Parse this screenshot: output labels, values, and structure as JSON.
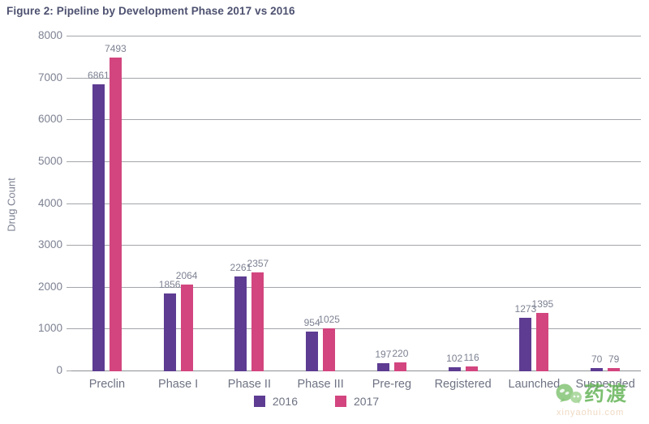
{
  "title": "Figure 2: Pipeline by Development Phase 2017 vs 2016",
  "chart_data": {
    "type": "bar",
    "title": "Figure 2: Pipeline by Development Phase 2017 vs 2016",
    "categories": [
      "Preclin",
      "Phase I",
      "Phase II",
      "Phase III",
      "Pre-reg",
      "Registered",
      "Launched",
      "Suspended"
    ],
    "series": [
      {
        "name": "2016",
        "color": "#5d3c92",
        "values": [
          6861,
          1856,
          2261,
          954,
          197,
          102,
          1273,
          70
        ]
      },
      {
        "name": "2017",
        "color": "#d2457f",
        "values": [
          7493,
          2064,
          2357,
          1025,
          220,
          116,
          1395,
          79
        ]
      }
    ],
    "xlabel": "",
    "ylabel": "Drug Count",
    "ylim": [
      0,
      8000
    ],
    "ytick_step": 1000,
    "grid": true,
    "legend_position": "bottom",
    "data_labels": true
  },
  "colors": {
    "series_2016": "#5d3c92",
    "series_2017": "#d2457f",
    "title_text": "#4d5170",
    "axis_text": "#7d8292",
    "gridline": "#a3a5aa",
    "watermark_green": "#5cb04e"
  },
  "watermark": {
    "brand": "药渡",
    "domain": "xinyaohui.com",
    "logo": "green-chat-bubbles-icon"
  }
}
